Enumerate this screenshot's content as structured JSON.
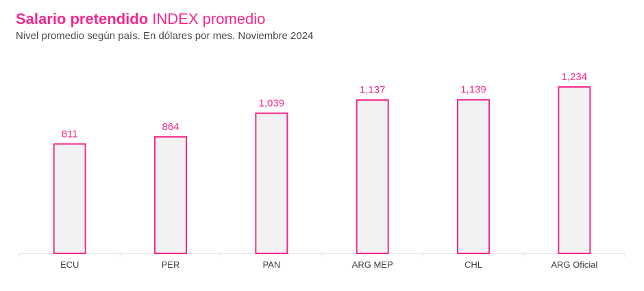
{
  "title_bold": "Salario pretendido",
  "title_regular": "INDEX promedio",
  "subtitle": "Nivel promedio según país. En dólares por mes. Noviembre 2024",
  "colors": {
    "accent": "#f5288c",
    "bar_fill": "#f2f2f2",
    "axis": "#d9d9d9",
    "tick_label": "#404040"
  },
  "chart_data": {
    "type": "bar",
    "title": "Salario pretendido INDEX promedio",
    "subtitle": "Nivel promedio según país. En dólares por mes. Noviembre 2024",
    "xlabel": "",
    "ylabel": "",
    "categories": [
      "ECU",
      "PER",
      "PAN",
      "ARG MEP",
      "CHL",
      "ARG Oficial"
    ],
    "values": [
      811,
      864,
      1039,
      1137,
      1139,
      1234
    ],
    "value_labels": [
      "811",
      "864",
      "1,039",
      "1,137",
      "1,139",
      "1,234"
    ],
    "ylim": [
      0,
      1234
    ],
    "grid": false,
    "legend": "none"
  }
}
